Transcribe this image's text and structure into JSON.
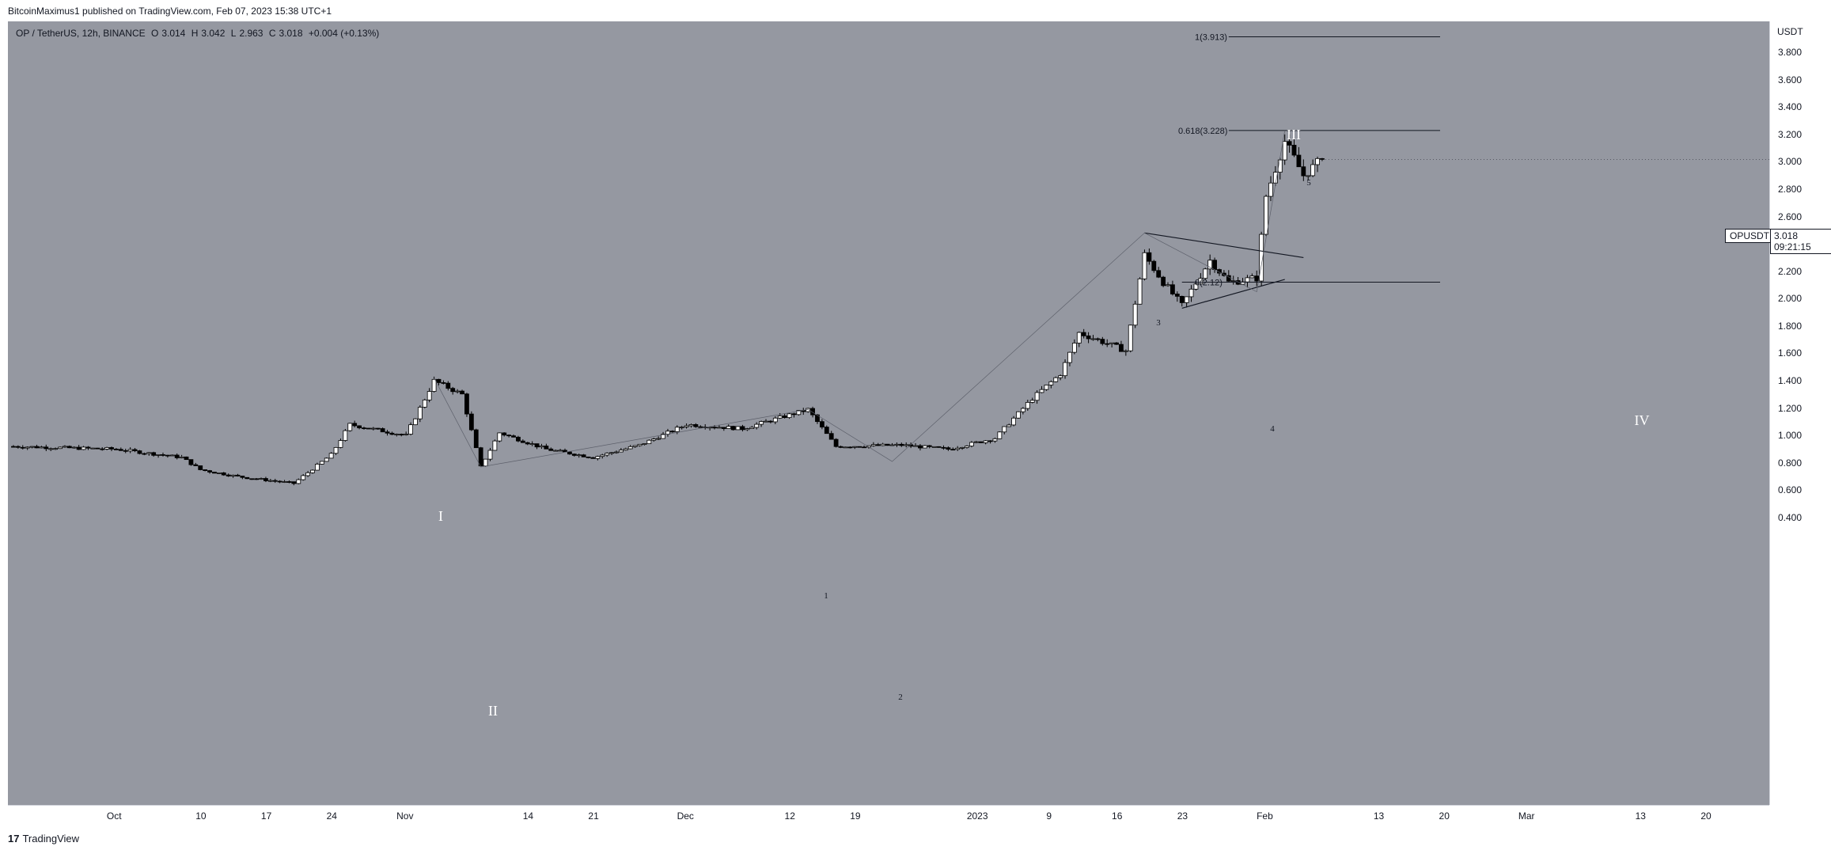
{
  "header": {
    "text": "BitcoinMaximus1 published on TradingView.com, Feb 07, 2023 15:38 UTC+1"
  },
  "legend": {
    "symbol": "OP / TetherUS, 12h, BINANCE",
    "o_label": "O",
    "o_value": "3.014",
    "h_label": "H",
    "h_value": "3.042",
    "l_label": "L",
    "l_value": "2.963",
    "c_label": "C",
    "c_value": "3.018",
    "change": "+0.004 (+0.13%)"
  },
  "price_axis": {
    "unit": "USDT"
  },
  "current_price": {
    "symbol": "OPUSDT",
    "price": "3.018",
    "countdown": "09:21:15"
  },
  "footer": {
    "logo": "17",
    "brand": "TradingView"
  },
  "colors": {
    "background": "#9598a1",
    "candle_up": "#ffffff",
    "candle_down": "#000000",
    "line": "#131722"
  },
  "chart_data": {
    "type": "candlestick",
    "title": "OP / TetherUS, 12h, BINANCE",
    "ylabel": "USDT",
    "ylim": [
      0.4,
      3.913
    ],
    "y_ticks": [
      "3.800",
      "3.600",
      "3.400",
      "3.200",
      "3.000",
      "2.800",
      "2.600",
      "2.400",
      "2.200",
      "2.000",
      "1.800",
      "1.600",
      "1.400",
      "1.200",
      "1.000",
      "0.800",
      "0.600",
      "0.400"
    ],
    "x_ticks": [
      "Oct",
      "10",
      "17",
      "24",
      "Nov",
      "14",
      "21",
      "Dec",
      "12",
      "19",
      "2023",
      "9",
      "16",
      "23",
      "Feb",
      "13",
      "20",
      "Mar",
      "13",
      "20"
    ],
    "last_close": 3.018,
    "approx_path": [
      [
        "Sep 20",
        0.92
      ],
      [
        "Oct 1",
        0.9
      ],
      [
        "Oct 8",
        0.84
      ],
      [
        "Oct 10",
        0.75
      ],
      [
        "Oct 14",
        0.7
      ],
      [
        "Oct 20",
        0.65
      ],
      [
        "Oct 24",
        0.86
      ],
      [
        "Oct 26",
        1.08
      ],
      [
        "Nov 1",
        1.0
      ],
      [
        "Nov 4",
        1.4
      ],
      [
        "Nov 7",
        1.3
      ],
      [
        "Nov 9",
        0.77
      ],
      [
        "Nov 11",
        1.02
      ],
      [
        "Nov 16",
        0.9
      ],
      [
        "Nov 21",
        0.84
      ],
      [
        "Nov 26",
        0.93
      ],
      [
        "Dec 1",
        1.08
      ],
      [
        "Dec 7",
        1.05
      ],
      [
        "Dec 14",
        1.19
      ],
      [
        "Dec 17",
        0.92
      ],
      [
        "Dec 24",
        0.93
      ],
      [
        "Dec 29",
        0.9
      ],
      [
        "Jan 3",
        0.98
      ],
      [
        "Jan 7",
        1.27
      ],
      [
        "Jan 10",
        1.45
      ],
      [
        "Jan 12",
        1.75
      ],
      [
        "Jan 17",
        1.62
      ],
      [
        "Jan 19",
        2.32
      ],
      [
        "Jan 21",
        2.12
      ],
      [
        "Jan 23",
        1.95
      ],
      [
        "Jan 26",
        2.28
      ],
      [
        "Jan 28",
        2.12
      ],
      [
        "Jan 31",
        2.15
      ],
      [
        "Feb 1",
        2.75
      ],
      [
        "Feb 3",
        3.15
      ],
      [
        "Feb 5",
        2.9
      ],
      [
        "Feb 7",
        3.018
      ]
    ],
    "annotations": {
      "fib_1": "1(3.913)",
      "fib_0618": "0.618(3.228)",
      "fib_low": "0(2.12)",
      "wave_I": "I",
      "wave_II": "II",
      "wave_III": "III",
      "wave_IV": "IV",
      "sub_1": "1",
      "sub_2": "2",
      "sub_3": "3",
      "sub_4": "4",
      "sub_5": "5"
    }
  }
}
